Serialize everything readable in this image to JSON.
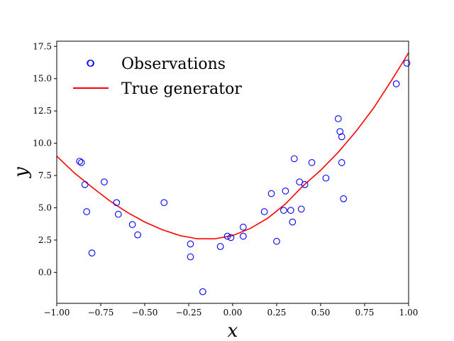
{
  "chart_data": {
    "type": "scatter",
    "xlabel": "x",
    "ylabel": "y",
    "xlim": [
      -1.0,
      1.0
    ],
    "ylim": [
      -2.4,
      17.9
    ],
    "xticks": [
      "−1.00",
      "−0.75",
      "−0.50",
      "−0.25",
      "0.00",
      "0.25",
      "0.50",
      "0.75",
      "1.00"
    ],
    "xtick_values": [
      -1.0,
      -0.75,
      -0.5,
      -0.25,
      0.0,
      0.25,
      0.5,
      0.75,
      1.0
    ],
    "yticks": [
      "0.0",
      "2.5",
      "5.0",
      "7.5",
      "10.0",
      "12.5",
      "15.0",
      "17.5"
    ],
    "ytick_values": [
      0.0,
      2.5,
      5.0,
      7.5,
      10.0,
      12.5,
      15.0,
      17.5
    ],
    "grid": false,
    "legend_position": "top-left",
    "series": [
      {
        "name": "Observations",
        "kind": "scatter",
        "marker": "open-circle",
        "color": "#0000ff",
        "x": [
          -0.84,
          -0.83,
          -0.87,
          -0.86,
          -0.81,
          -0.8,
          -0.73,
          -0.66,
          -0.65,
          -0.57,
          -0.54,
          -0.39,
          -0.24,
          -0.24,
          -0.17,
          -0.07,
          -0.03,
          -0.01,
          0.06,
          0.06,
          0.18,
          0.22,
          0.25,
          0.29,
          0.3,
          0.33,
          0.34,
          0.35,
          0.38,
          0.39,
          0.41,
          0.45,
          0.53,
          0.6,
          0.61,
          0.62,
          0.62,
          0.63,
          0.93,
          0.99
        ],
        "y": [
          6.8,
          4.7,
          8.6,
          8.5,
          16.2,
          1.5,
          7.0,
          5.4,
          4.5,
          3.7,
          2.9,
          5.4,
          2.2,
          1.2,
          -1.5,
          2.0,
          2.8,
          2.7,
          2.8,
          3.5,
          4.7,
          6.1,
          2.4,
          4.8,
          6.3,
          4.8,
          3.9,
          8.8,
          7.0,
          4.9,
          6.8,
          8.5,
          7.3,
          11.9,
          10.9,
          10.5,
          8.5,
          5.7,
          14.6,
          16.2
        ]
      },
      {
        "name": "True generator",
        "kind": "line",
        "color": "#ff0000",
        "x": [
          -1.0,
          -0.9,
          -0.8,
          -0.7,
          -0.6,
          -0.5,
          -0.4,
          -0.3,
          -0.2,
          -0.1,
          0.0,
          0.1,
          0.2,
          0.3,
          0.4,
          0.5,
          0.6,
          0.7,
          0.8,
          0.9,
          1.0
        ],
        "y": [
          9.0,
          7.7,
          6.6,
          5.55,
          4.65,
          3.9,
          3.3,
          2.85,
          2.6,
          2.6,
          2.85,
          3.4,
          4.2,
          5.3,
          6.7,
          7.9,
          9.3,
          10.9,
          12.7,
          14.8,
          17.0
        ]
      }
    ]
  }
}
